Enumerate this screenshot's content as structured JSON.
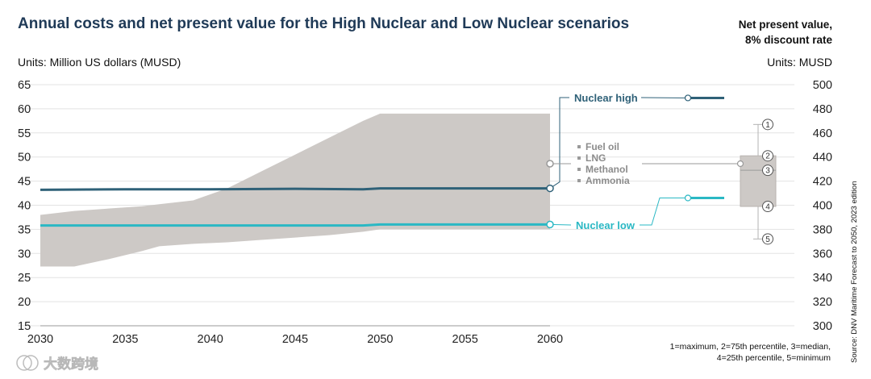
{
  "title": "Annual costs and net present value for the High Nuclear and Low Nuclear scenarios",
  "npv_title_line1": "Net present value,",
  "npv_title_line2": "8% discount rate",
  "units_left": "Units: Million US dollars (MUSD)",
  "units_right": "Units: MUSD",
  "colors": {
    "nuclear_high": "#2f6178",
    "nuclear_low": "#2ab8c4",
    "fuel_band": "#cdc9c6",
    "grid": "#e3e3e3"
  },
  "chart_data": [
    {
      "type": "area",
      "title": "",
      "xlabel": "",
      "ylabel": "Million US dollars (MUSD)",
      "xlim": [
        2030,
        2060
      ],
      "ylim": [
        15,
        65
      ],
      "x_ticks": [
        2030,
        2035,
        2040,
        2045,
        2050,
        2055,
        2060
      ],
      "y_ticks": [
        15,
        20,
        25,
        30,
        35,
        40,
        45,
        50,
        55,
        60,
        65
      ],
      "grid": true,
      "band": {
        "name_lines": [
          "Fuel oil",
          "LNG",
          "Methanol",
          "Ammonia"
        ],
        "x": [
          2030,
          2032,
          2034,
          2036,
          2037,
          2039,
          2041,
          2043,
          2045,
          2047,
          2049,
          2050,
          2060
        ],
        "upper": [
          38,
          38.8,
          39.3,
          39.8,
          40.2,
          41,
          43.5,
          47,
          50.5,
          54,
          57.5,
          59,
          59
        ],
        "lower": [
          27.3,
          27.3,
          28.8,
          30.5,
          31.5,
          32,
          32.3,
          32.8,
          33.3,
          33.8,
          34.5,
          35,
          35
        ]
      },
      "series": [
        {
          "name": "Nuclear high",
          "x": [
            2030,
            2035,
            2040,
            2045,
            2049,
            2050,
            2060
          ],
          "values": [
            43.2,
            43.3,
            43.3,
            43.4,
            43.3,
            43.5,
            43.5
          ]
        },
        {
          "name": "Nuclear low",
          "x": [
            2030,
            2035,
            2040,
            2045,
            2049,
            2050,
            2060
          ],
          "values": [
            35.8,
            35.8,
            35.8,
            35.8,
            35.8,
            36,
            36
          ]
        }
      ],
      "end_labels": [
        "Nuclear high",
        "Nuclear low"
      ]
    },
    {
      "type": "box",
      "title": "Net present value, 8% discount rate",
      "ylabel": "MUSD",
      "ylim": [
        300,
        500
      ],
      "y_ticks": [
        300,
        320,
        340,
        360,
        380,
        400,
        420,
        440,
        460,
        480,
        500
      ],
      "box": {
        "maximum": 467,
        "p75": 441,
        "median": 429,
        "p25": 399,
        "minimum": 372
      },
      "points": [
        {
          "name": "Nuclear high",
          "value": 489
        },
        {
          "name": "Nuclear low",
          "value": 406
        }
      ],
      "markers": [
        "1",
        "2",
        "3",
        "4",
        "5"
      ]
    }
  ],
  "footnote_line1": "1=maximum, 2=75th percentile, 3=median,",
  "footnote_line2": "4=25th percentile, 5=minimum",
  "source": "Source: DNV Maritime Forecast to 2050, 2023 edition",
  "watermark": "大数跨境"
}
